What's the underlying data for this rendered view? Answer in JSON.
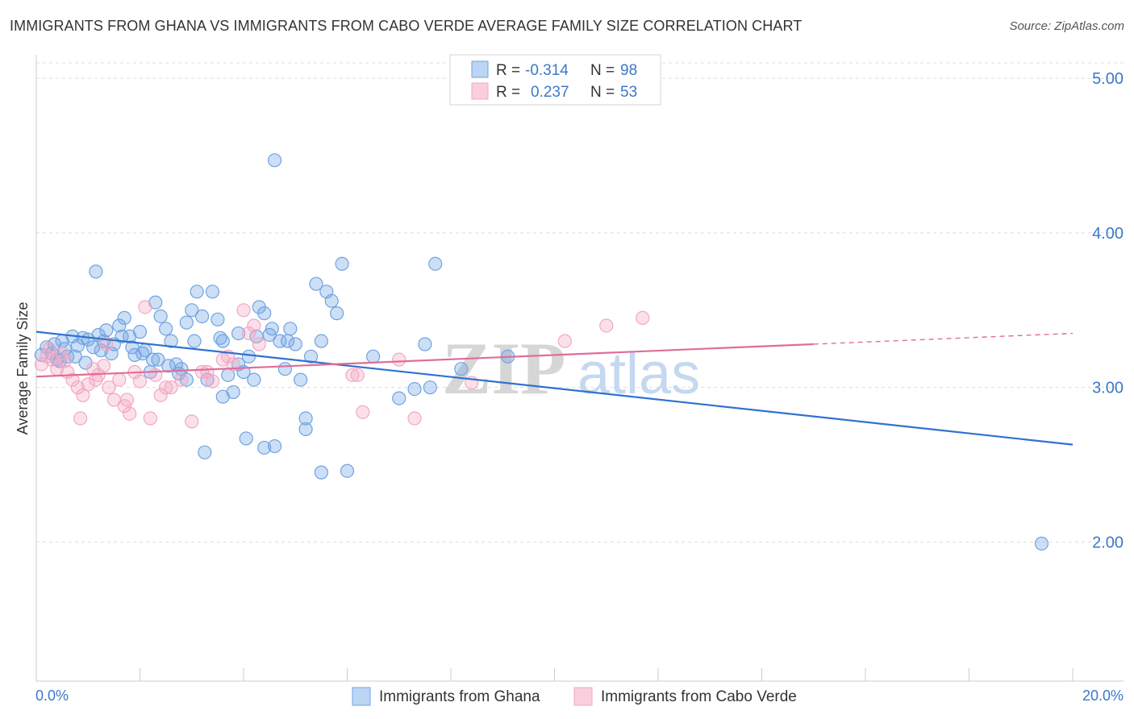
{
  "title": "IMMIGRANTS FROM GHANA VS IMMIGRANTS FROM CABO VERDE AVERAGE FAMILY SIZE CORRELATION CHART",
  "source": "Source: ZipAtlas.com",
  "colors": {
    "blue": "#6fa3e3",
    "blue_line": "#2f72d0",
    "pink": "#f3a7c2",
    "pink_line": "#e06d9a",
    "axis_text": "#3b78c9"
  },
  "chart_data": {
    "type": "scatter",
    "ylabel": "Average Family Size",
    "xlim": [
      0,
      20
    ],
    "ylim": [
      1.1,
      5.1
    ],
    "xtick_labels": [
      "0.0%",
      "20.0%"
    ],
    "ytick_values": [
      2.0,
      3.0,
      4.0,
      5.0
    ],
    "ytick_labels": [
      "2.00",
      "3.00",
      "4.00",
      "5.00"
    ],
    "watermark": {
      "zip": "ZIP",
      "atlas": "atlas"
    },
    "legend": {
      "r_label": "R =",
      "n_label": "N =",
      "entries": [
        {
          "r": "-0.314",
          "n": "98"
        },
        {
          "r": "0.237",
          "n": "53"
        }
      ]
    },
    "series": [
      {
        "name": "Immigrants from Ghana",
        "color": "#6fa3e3",
        "trend": {
          "x0": 0.0,
          "y0": 3.36,
          "x1": 20.0,
          "y1": 2.63,
          "solid_to": 20.0
        },
        "points": [
          [
            0.1,
            3.21
          ],
          [
            0.2,
            3.26
          ],
          [
            0.3,
            3.22
          ],
          [
            0.4,
            3.18
          ],
          [
            0.35,
            3.28
          ],
          [
            0.5,
            3.3
          ],
          [
            0.55,
            3.25
          ],
          [
            0.6,
            3.2
          ],
          [
            0.7,
            3.33
          ],
          [
            0.8,
            3.27
          ],
          [
            0.9,
            3.32
          ],
          [
            1.0,
            3.31
          ],
          [
            1.1,
            3.26
          ],
          [
            1.2,
            3.34
          ],
          [
            1.3,
            3.3
          ],
          [
            1.35,
            3.37
          ],
          [
            1.5,
            3.28
          ],
          [
            1.6,
            3.4
          ],
          [
            1.7,
            3.45
          ],
          [
            1.8,
            3.33
          ],
          [
            1.9,
            3.21
          ],
          [
            2.0,
            3.36
          ],
          [
            2.1,
            3.24
          ],
          [
            2.2,
            3.1
          ],
          [
            2.3,
            3.55
          ],
          [
            2.4,
            3.46
          ],
          [
            2.5,
            3.38
          ],
          [
            2.6,
            3.3
          ],
          [
            2.7,
            3.15
          ],
          [
            2.8,
            3.12
          ],
          [
            2.9,
            3.42
          ],
          [
            3.0,
            3.5
          ],
          [
            3.1,
            3.62
          ],
          [
            3.2,
            3.46
          ],
          [
            3.3,
            3.05
          ],
          [
            3.4,
            3.62
          ],
          [
            3.5,
            3.44
          ],
          [
            3.6,
            3.3
          ],
          [
            3.7,
            3.08
          ],
          [
            3.8,
            2.97
          ],
          [
            3.9,
            3.15
          ],
          [
            4.0,
            3.1
          ],
          [
            4.1,
            3.2
          ],
          [
            4.2,
            3.05
          ],
          [
            4.3,
            3.52
          ],
          [
            4.4,
            3.48
          ],
          [
            4.5,
            3.34
          ],
          [
            4.6,
            2.62
          ],
          [
            4.7,
            3.3
          ],
          [
            4.8,
            3.12
          ],
          [
            4.9,
            3.38
          ],
          [
            5.0,
            3.28
          ],
          [
            5.1,
            3.05
          ],
          [
            5.2,
            2.8
          ],
          [
            5.3,
            3.2
          ],
          [
            5.4,
            3.67
          ],
          [
            5.5,
            3.3
          ],
          [
            5.6,
            3.62
          ],
          [
            5.7,
            3.56
          ],
          [
            5.8,
            3.48
          ],
          [
            5.9,
            3.8
          ],
          [
            6.0,
            2.46
          ],
          [
            6.5,
            3.2
          ],
          [
            7.0,
            2.93
          ],
          [
            7.5,
            3.28
          ],
          [
            7.3,
            2.99
          ],
          [
            7.6,
            3.0
          ],
          [
            7.7,
            3.8
          ],
          [
            8.2,
            3.12
          ],
          [
            9.1,
            3.2
          ],
          [
            19.4,
            1.99
          ],
          [
            1.15,
            3.75
          ],
          [
            2.25,
            3.18
          ],
          [
            2.9,
            3.05
          ],
          [
            3.25,
            2.58
          ],
          [
            3.6,
            2.94
          ],
          [
            3.9,
            3.35
          ],
          [
            4.05,
            2.67
          ],
          [
            4.4,
            2.61
          ],
          [
            4.55,
            3.38
          ],
          [
            4.6,
            4.47
          ],
          [
            4.85,
            3.3
          ],
          [
            5.2,
            2.73
          ],
          [
            5.5,
            2.45
          ],
          [
            0.45,
            3.17
          ],
          [
            0.75,
            3.2
          ],
          [
            0.95,
            3.16
          ],
          [
            1.25,
            3.24
          ],
          [
            1.45,
            3.22
          ],
          [
            1.65,
            3.33
          ],
          [
            1.85,
            3.26
          ],
          [
            2.05,
            3.22
          ],
          [
            2.35,
            3.18
          ],
          [
            2.55,
            3.14
          ],
          [
            2.75,
            3.09
          ],
          [
            3.05,
            3.3
          ],
          [
            3.55,
            3.32
          ],
          [
            4.25,
            3.33
          ]
        ]
      },
      {
        "name": "Immigrants from Cabo Verde",
        "color": "#f3a7c2",
        "trend": {
          "x0": 0.0,
          "y0": 3.07,
          "x1": 20.0,
          "y1": 3.35,
          "solid_to": 15.0
        },
        "points": [
          [
            0.1,
            3.15
          ],
          [
            0.2,
            3.2
          ],
          [
            0.3,
            3.18
          ],
          [
            0.4,
            3.12
          ],
          [
            0.5,
            3.22
          ],
          [
            0.6,
            3.1
          ],
          [
            0.7,
            3.05
          ],
          [
            0.8,
            3.0
          ],
          [
            0.9,
            2.95
          ],
          [
            1.0,
            3.02
          ],
          [
            1.1,
            3.12
          ],
          [
            1.2,
            3.08
          ],
          [
            1.3,
            3.14
          ],
          [
            1.4,
            3.0
          ],
          [
            1.5,
            2.92
          ],
          [
            1.6,
            3.05
          ],
          [
            1.7,
            2.88
          ],
          [
            1.8,
            2.83
          ],
          [
            1.9,
            3.1
          ],
          [
            2.0,
            3.04
          ],
          [
            2.1,
            3.52
          ],
          [
            2.2,
            2.8
          ],
          [
            2.3,
            3.08
          ],
          [
            2.4,
            2.95
          ],
          [
            2.5,
            3.0
          ],
          [
            2.6,
            3.0
          ],
          [
            2.8,
            3.05
          ],
          [
            3.0,
            2.78
          ],
          [
            3.2,
            3.1
          ],
          [
            3.4,
            3.04
          ],
          [
            3.6,
            3.18
          ],
          [
            3.8,
            3.15
          ],
          [
            4.0,
            3.5
          ],
          [
            4.1,
            3.35
          ],
          [
            4.2,
            3.4
          ],
          [
            4.3,
            3.28
          ],
          [
            6.1,
            3.08
          ],
          [
            6.2,
            3.08
          ],
          [
            6.3,
            2.84
          ],
          [
            7.0,
            3.18
          ],
          [
            7.3,
            2.8
          ],
          [
            8.4,
            3.03
          ],
          [
            10.2,
            3.3
          ],
          [
            11.0,
            3.4
          ],
          [
            11.7,
            3.45
          ],
          [
            0.25,
            3.25
          ],
          [
            0.55,
            3.17
          ],
          [
            0.85,
            2.8
          ],
          [
            1.15,
            3.05
          ],
          [
            1.35,
            3.28
          ],
          [
            1.75,
            2.92
          ],
          [
            3.3,
            3.1
          ],
          [
            3.7,
            3.2
          ]
        ]
      }
    ]
  }
}
